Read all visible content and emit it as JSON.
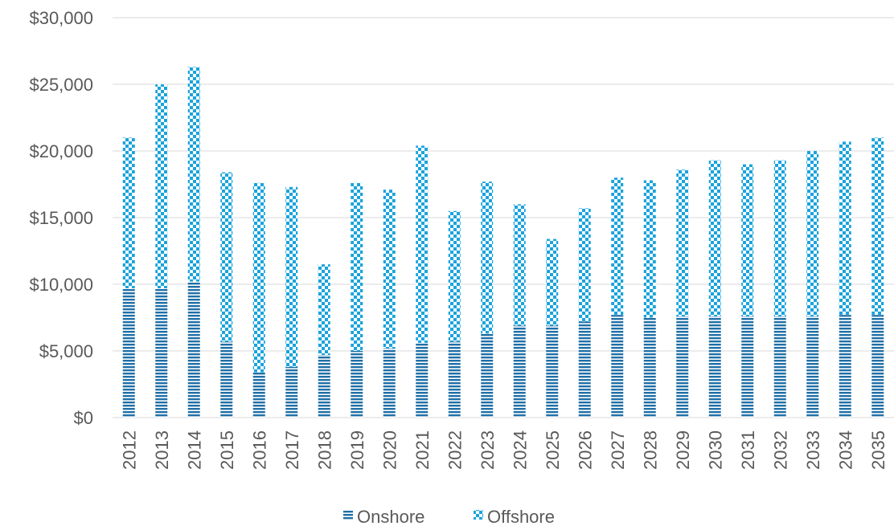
{
  "chart_data": {
    "type": "bar",
    "stacked": true,
    "categories": [
      "2012",
      "2013",
      "2014",
      "2015",
      "2016",
      "2017",
      "2018",
      "2019",
      "2020",
      "2021",
      "2022",
      "2023",
      "2024",
      "2025",
      "2026",
      "2027",
      "2028",
      "2029",
      "2030",
      "2031",
      "2032",
      "2033",
      "2034",
      "2035"
    ],
    "series": [
      {
        "name": "Onshore",
        "color": "#1f6fa6",
        "pattern": "horizontal-stripes",
        "values": [
          9700,
          9700,
          10200,
          5700,
          3400,
          3800,
          4700,
          5000,
          5200,
          5600,
          5700,
          6300,
          6900,
          6900,
          7200,
          7700,
          7500,
          7600,
          7600,
          7600,
          7600,
          7600,
          7700,
          7700
        ]
      },
      {
        "name": "Offshore",
        "color": "#1aa3dc",
        "pattern": "checkerboard",
        "values": [
          11300,
          15300,
          16100,
          12700,
          14200,
          13500,
          6800,
          12600,
          11900,
          14800,
          9800,
          11400,
          9100,
          6500,
          8500,
          10300,
          10300,
          11000,
          11700,
          11400,
          11700,
          12400,
          13000,
          13300
        ]
      }
    ],
    "ylim": [
      0,
      30000
    ],
    "yticks": [
      0,
      5000,
      10000,
      15000,
      20000,
      25000,
      30000
    ],
    "ytick_labels": [
      "$0",
      "$5,000",
      "$10,000",
      "$15,000",
      "$20,000",
      "$25,000",
      "$30,000"
    ],
    "title": "",
    "xlabel": "",
    "ylabel": "",
    "grid": true,
    "legend_position": "bottom"
  }
}
